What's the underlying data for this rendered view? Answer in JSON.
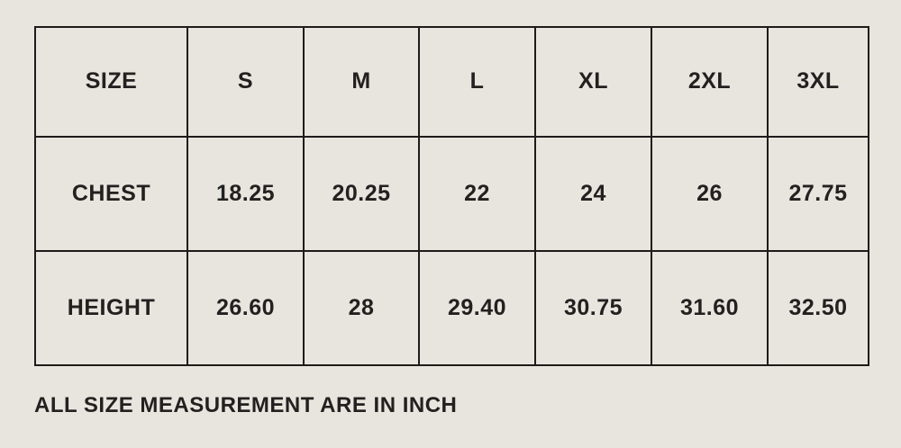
{
  "colors": {
    "background": "#e8e5de",
    "border": "#1d1c1a",
    "text": "#222120"
  },
  "table": {
    "header": [
      "SIZE",
      "S",
      "M",
      "L",
      "XL",
      "2XL",
      "3XL"
    ],
    "rows": [
      {
        "label": "CHEST",
        "values": [
          "18.25",
          "20.25",
          "22",
          "24",
          "26",
          "27.75"
        ]
      },
      {
        "label": "HEIGHT",
        "values": [
          "26.60",
          "28",
          "29.40",
          "30.75",
          "31.60",
          "32.50"
        ]
      }
    ]
  },
  "footer": {
    "note": "ALL SIZE MEASUREMENT ARE IN INCH"
  },
  "chart_data": {
    "type": "table",
    "columns": [
      "SIZE",
      "S",
      "M",
      "L",
      "XL",
      "2XL",
      "3XL"
    ],
    "rows": [
      [
        "CHEST",
        18.25,
        20.25,
        22,
        24,
        26,
        27.75
      ],
      [
        "HEIGHT",
        26.6,
        28,
        29.4,
        30.75,
        31.6,
        32.5
      ]
    ],
    "note": "ALL SIZE MEASUREMENT ARE IN INCH",
    "units": "inch"
  }
}
